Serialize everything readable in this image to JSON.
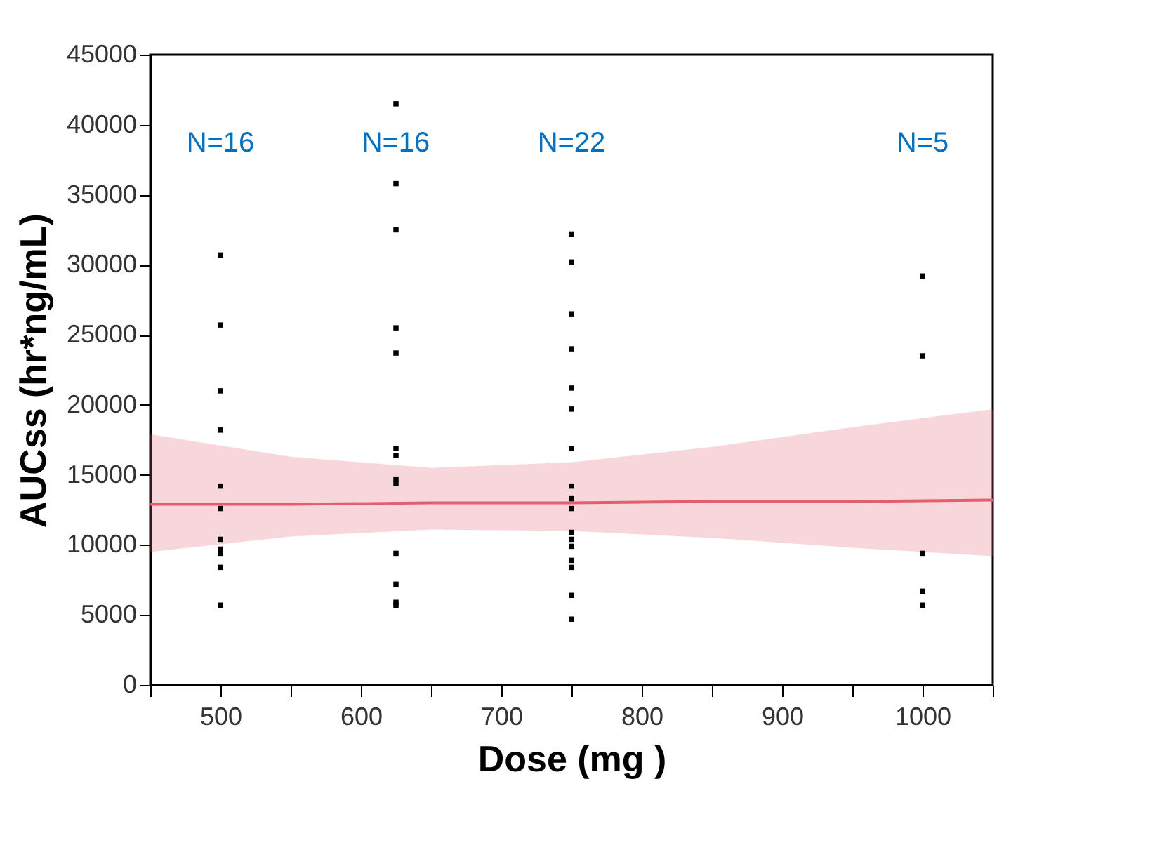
{
  "chart_data": {
    "type": "scatter",
    "xlabel": "Dose (mg )",
    "ylabel": "AUCss (hr*ng/mL)",
    "xlim": [
      450,
      1050
    ],
    "ylim": [
      0,
      45000
    ],
    "xticks": [
      {
        "value": 450,
        "label": null
      },
      500,
      {
        "value": 550,
        "label": null
      },
      600,
      {
        "value": 650,
        "label": null
      },
      700,
      {
        "value": 750,
        "label": null
      },
      800,
      {
        "value": 850,
        "label": null
      },
      900,
      {
        "value": 950,
        "label": null
      },
      1000,
      {
        "value": 1050,
        "label": null
      }
    ],
    "yticks": [
      0,
      5000,
      10000,
      15000,
      20000,
      25000,
      30000,
      35000,
      40000,
      45000
    ],
    "grid": false,
    "series": [
      {
        "marker": "square",
        "color": "#000000",
        "x": [
          500,
          500,
          500,
          500,
          500,
          500,
          500,
          500,
          500,
          500,
          500,
          625,
          625,
          625,
          625,
          625,
          625,
          625,
          625,
          625,
          625,
          625,
          625,
          625,
          750,
          750,
          750,
          750,
          750,
          750,
          750,
          750,
          750,
          750,
          750,
          750,
          750,
          750,
          750,
          750,
          750,
          1000,
          1000,
          1000,
          1000,
          1000
        ],
        "values": [
          30700,
          25700,
          21000,
          18200,
          14200,
          12600,
          10400,
          9700,
          9400,
          8400,
          5700,
          41500,
          35800,
          32500,
          25500,
          23700,
          16900,
          16400,
          14700,
          14400,
          9400,
          7200,
          5900,
          5700,
          32200,
          30200,
          26500,
          24000,
          21200,
          19700,
          16900,
          14200,
          13300,
          12600,
          10900,
          10400,
          9900,
          8900,
          8400,
          6400,
          4700,
          29200,
          23500,
          9400,
          6700,
          5700
        ]
      },
      {
        "type": "line",
        "marker": "none",
        "color": "#e06070",
        "x": [
          450,
          550,
          650,
          750,
          850,
          950,
          1050
        ],
        "values": [
          12900,
          12900,
          13000,
          13000,
          13100,
          13100,
          13200
        ],
        "lower": [
          9500,
          10600,
          11100,
          11000,
          10500,
          9800,
          9200
        ],
        "upper": [
          17900,
          16300,
          15500,
          15900,
          17000,
          18400,
          19700
        ]
      }
    ],
    "annotations": [
      "N=16",
      "N=16",
      "N=22",
      "N=5"
    ]
  }
}
